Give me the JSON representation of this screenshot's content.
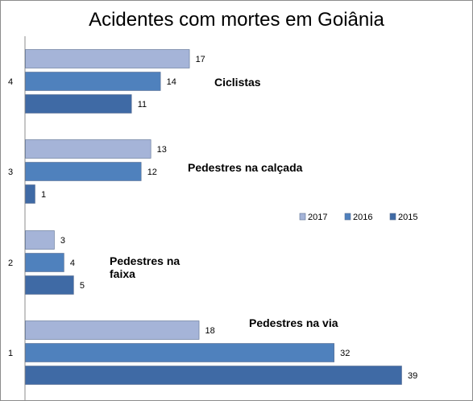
{
  "chart_data": {
    "type": "bar",
    "orientation": "horizontal",
    "title": "Acidentes com mortes em Goiânia",
    "categories": [
      "1",
      "2",
      "3",
      "4"
    ],
    "category_annotations": [
      "Pedestres na via",
      "Pedestres na faixa",
      "Pedestres na calçada",
      "Ciclistas"
    ],
    "series": [
      {
        "name": "2017",
        "values": [
          18,
          3,
          13,
          17
        ],
        "color": "#a5b4d8"
      },
      {
        "name": "2016",
        "values": [
          32,
          4,
          12,
          14
        ],
        "color": "#4f81bd"
      },
      {
        "name": "2015",
        "values": [
          39,
          5,
          1,
          11
        ],
        "color": "#3f6aa5"
      }
    ],
    "xlim": [
      0,
      40
    ],
    "legend_position": "right",
    "grid": false
  }
}
